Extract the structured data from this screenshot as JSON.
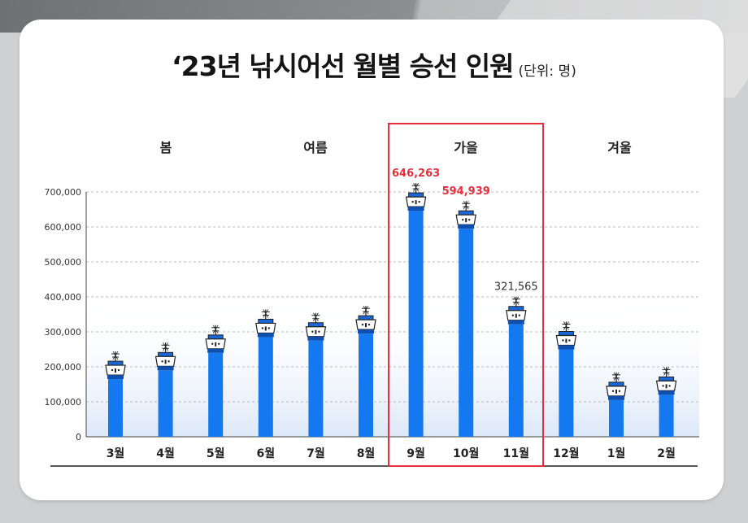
{
  "header": {
    "title": "‘23년 낚시어선 월별 승선 인원",
    "unit": "(단위: 명)"
  },
  "seasons": [
    "봄",
    "여름",
    "가을",
    "겨울"
  ],
  "colors": {
    "bar": "#1478f0",
    "highlight": "#e8303c",
    "background_panel": "#dce8f8"
  },
  "chart_data": {
    "type": "bar",
    "title": "‘23년 낚시어선 월별 승선 인원",
    "unit": "(단위: 명)",
    "categories": [
      "3월",
      "4월",
      "5월",
      "6월",
      "7월",
      "8월",
      "9월",
      "10월",
      "11월",
      "12월",
      "1월",
      "2월"
    ],
    "values": [
      165000,
      190000,
      240000,
      285000,
      275000,
      295000,
      646263,
      594939,
      321565,
      250000,
      105000,
      120000
    ],
    "ylim": [
      0,
      700000
    ],
    "yticks": [
      0,
      100000,
      200000,
      300000,
      400000,
      500000,
      600000,
      700000
    ],
    "ytick_labels": [
      "0",
      "100,000",
      "200,000",
      "300,000",
      "400,000",
      "500,000",
      "600,000",
      "700,000"
    ],
    "data_labels": [
      {
        "index": 6,
        "text": "646,263",
        "highlight": true
      },
      {
        "index": 7,
        "text": "594,939",
        "highlight": true
      },
      {
        "index": 8,
        "text": "321,565",
        "highlight": false
      }
    ],
    "highlighted_season": "가을",
    "grid": true
  }
}
